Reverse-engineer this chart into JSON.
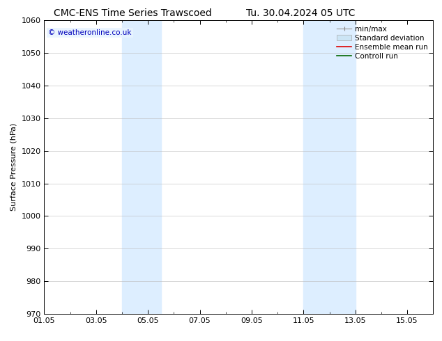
{
  "title_left": "CMC-ENS Time Series Trawscoed",
  "title_right": "Tu. 30.04.2024 05 UTC",
  "ylabel": "Surface Pressure (hPa)",
  "ylim": [
    970,
    1060
  ],
  "yticks": [
    970,
    980,
    990,
    1000,
    1010,
    1020,
    1030,
    1040,
    1050,
    1060
  ],
  "xlim": [
    0,
    15
  ],
  "xtick_labels": [
    "01.05",
    "03.05",
    "05.05",
    "07.05",
    "09.05",
    "11.05",
    "13.05",
    "15.05"
  ],
  "xtick_positions": [
    0,
    2,
    4,
    6,
    8,
    10,
    12,
    14
  ],
  "shaded_regions": [
    {
      "xstart": 3.0,
      "xend": 4.5,
      "color": "#ddeeff"
    },
    {
      "xstart": 10.0,
      "xend": 12.0,
      "color": "#ddeeff"
    }
  ],
  "watermark_text": "© weatheronline.co.uk",
  "watermark_color": "#0000bb",
  "bg_color": "#ffffff",
  "grid_color": "#bbbbbb",
  "title_fontsize": 10,
  "tick_fontsize": 8,
  "ylabel_fontsize": 8,
  "legend_fontsize": 7.5
}
